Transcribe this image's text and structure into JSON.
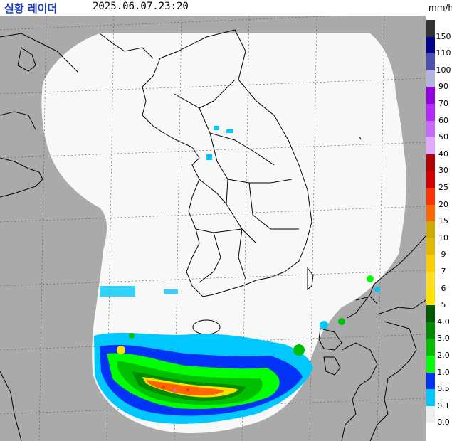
{
  "header": {
    "title": "실황 레이더",
    "timestamp": "2025.06.07.23:20"
  },
  "legend": {
    "unit": "mm/h",
    "items": [
      {
        "label": "150",
        "color": "#333333"
      },
      {
        "label": "110",
        "color": "#000390"
      },
      {
        "label": "100",
        "color": "#4c4eb1"
      },
      {
        "label": "90",
        "color": "#b3b4de"
      },
      {
        "label": "70",
        "color": "#9300e4"
      },
      {
        "label": "60",
        "color": "#b329ff"
      },
      {
        "label": "50",
        "color": "#c969ff"
      },
      {
        "label": "40",
        "color": "#e0a9ff"
      },
      {
        "label": "30",
        "color": "#b40000"
      },
      {
        "label": "25",
        "color": "#d20000"
      },
      {
        "label": "20",
        "color": "#ff3200"
      },
      {
        "label": "15",
        "color": "#ff6600"
      },
      {
        "label": "10",
        "color": "#ccaa00"
      },
      {
        "label": "9",
        "color": "#e0b900"
      },
      {
        "label": "7",
        "color": "#f9cd00"
      },
      {
        "label": "6",
        "color": "#ffdc1f"
      },
      {
        "label": "5",
        "color": "#ffe100"
      },
      {
        "label": "4.0",
        "color": "#005a00"
      },
      {
        "label": "3.0",
        "color": "#008c00"
      },
      {
        "label": "2.0",
        "color": "#00be00"
      },
      {
        "label": "1.0",
        "color": "#00ff00"
      },
      {
        "label": "0.5",
        "color": "#0033f5"
      },
      {
        "label": "0.1",
        "color": "#00c8ff"
      },
      {
        "label": "0.0",
        "color": "#eeeeee"
      }
    ]
  },
  "colors": {
    "land": "#aaaaaa",
    "coverage": "#f8f8f8",
    "border": "#000000",
    "grid": "#555555"
  }
}
